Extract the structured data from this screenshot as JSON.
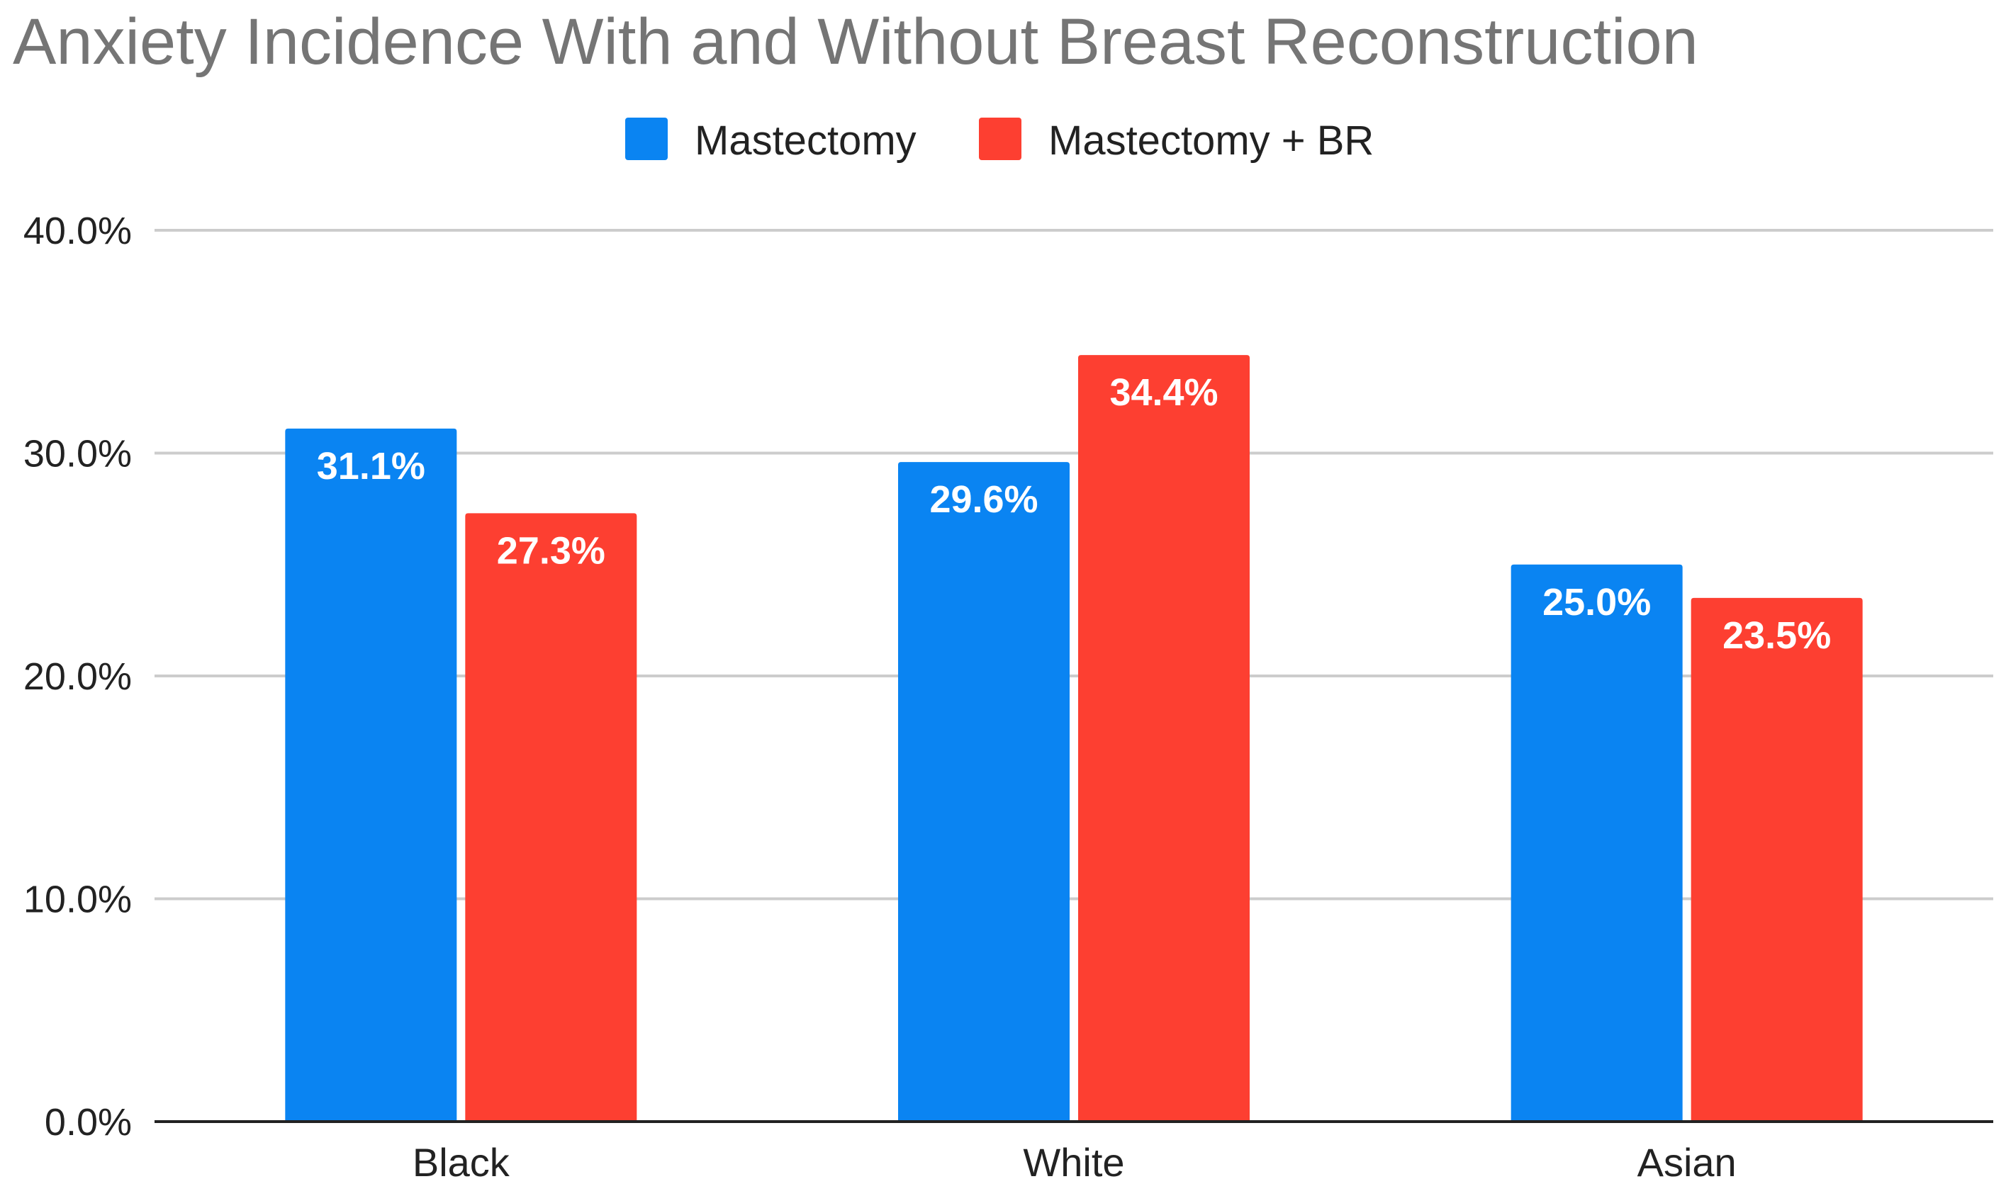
{
  "chart_data": {
    "type": "bar",
    "title": "Anxiety Incidence With and Without Breast Reconstruction",
    "categories": [
      "Black",
      "White",
      "Asian"
    ],
    "series": [
      {
        "name": "Mastectomy",
        "color": "#0a84f2",
        "values": [
          31.1,
          29.6,
          25.0
        ],
        "labels": [
          "31.1%",
          "29.6%",
          "25.0%"
        ]
      },
      {
        "name": "Mastectomy + BR",
        "color": "#fd3f31",
        "values": [
          27.3,
          34.4,
          23.5
        ],
        "labels": [
          "27.3%",
          "34.4%",
          "23.5%"
        ]
      }
    ],
    "xlabel": "",
    "ylabel": "",
    "ylim": [
      0,
      40
    ],
    "yticks": [
      0,
      10,
      20,
      30,
      40
    ],
    "ytick_labels": [
      "0.0%",
      "10.0%",
      "20.0%",
      "30.0%",
      "40.0%"
    ],
    "grid": true,
    "legend_position": "top-center"
  }
}
